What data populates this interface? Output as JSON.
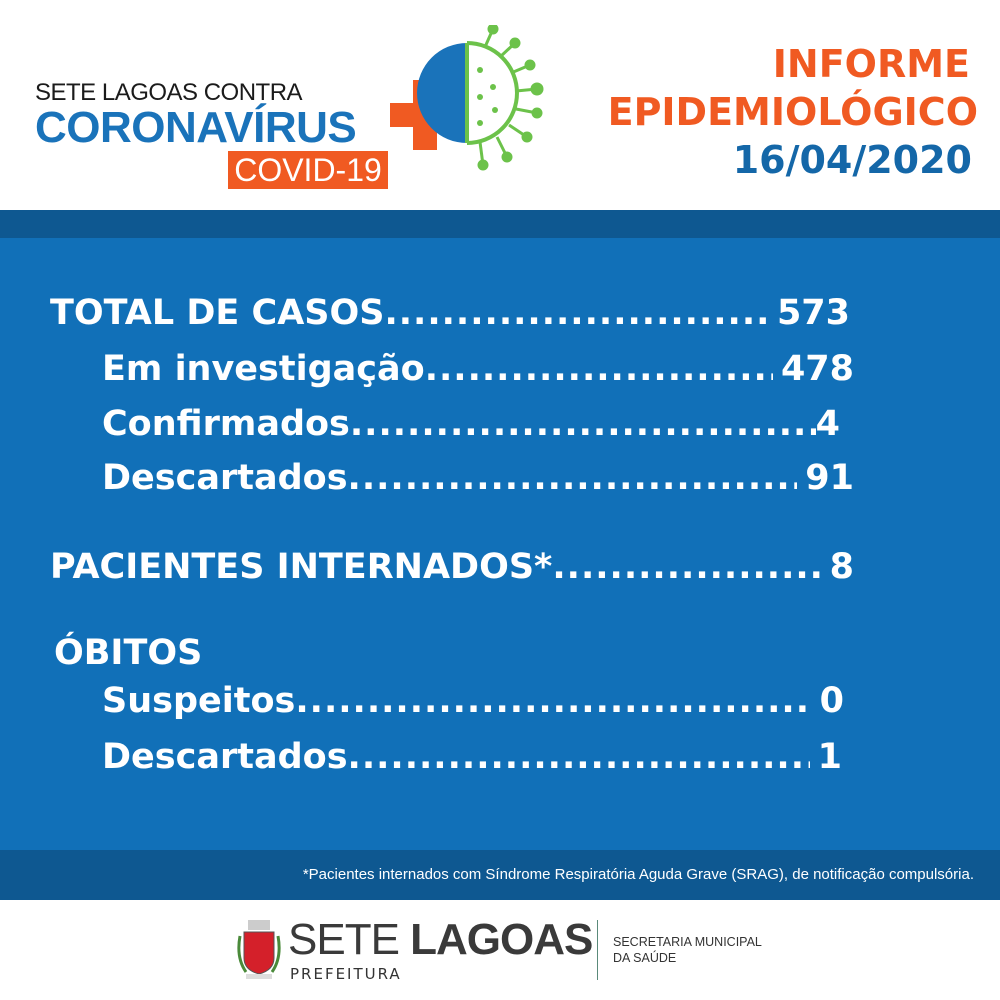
{
  "header": {
    "logo": {
      "line1": "SETE LAGOAS CONTRA",
      "line2": "CORONAVÍRUS",
      "badge": "COVID-19"
    },
    "title_line1": "INFORME",
    "title_line2": "EPIDEMIOLÓGICO",
    "date": "16/04/2020"
  },
  "colors": {
    "primary_blue": "#1170b8",
    "dark_blue": "#0e5891",
    "accent_orange": "#f05a22",
    "virus_green": "#6cc24a"
  },
  "stats": {
    "total": {
      "label": "TOTAL DE CASOS",
      "value": "573"
    },
    "investigacao": {
      "label": "Em investigação",
      "value": "478"
    },
    "confirmados": {
      "label": "Confirmados",
      "value": "4"
    },
    "descartados": {
      "label": "Descartados",
      "value": "91"
    },
    "internados": {
      "label": "PACIENTES INTERNADOS*",
      "value": "8"
    },
    "obitos_title": "ÓBITOS",
    "obitos_suspeitos": {
      "label": "Suspeitos",
      "value": "0"
    },
    "obitos_descartados": {
      "label": "Descartados",
      "value": "1"
    }
  },
  "footnote": "*Pacientes internados com Síndrome Respiratória Aguda Grave (SRAG), de notificação compulsória.",
  "footer": {
    "city_part1": "SETE",
    "city_part2": "LAGOAS",
    "prefeitura": "PREFEITURA",
    "secretaria_line1": "SECRETARIA MUNICIPAL",
    "secretaria_line2": "DA SAÚDE"
  }
}
